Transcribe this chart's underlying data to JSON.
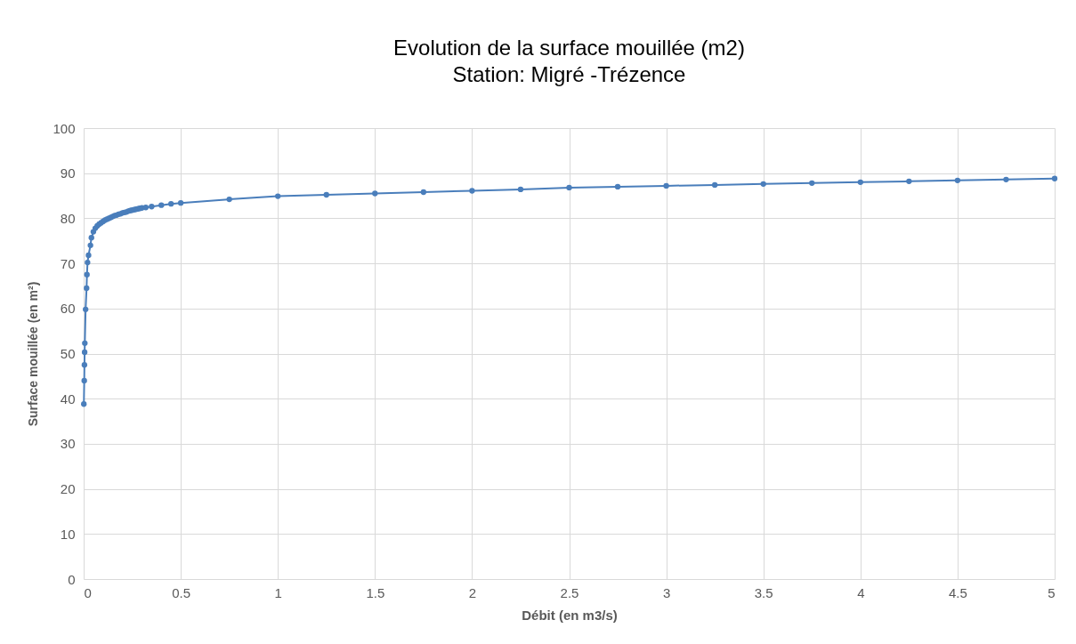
{
  "chart_data": {
    "type": "line",
    "title": "Evolution de la surface mouillée  (m2)",
    "subtitle": "Station: Migré -Trézence",
    "xlabel": "Débit (en m3/s)",
    "ylabel": "Surface mouillée (en m²)",
    "x": [
      0.001,
      0.003,
      0.004,
      0.005,
      0.006,
      0.01,
      0.015,
      0.017,
      0.02,
      0.025,
      0.035,
      0.04,
      0.05,
      0.06,
      0.07,
      0.08,
      0.09,
      0.1,
      0.11,
      0.12,
      0.13,
      0.14,
      0.15,
      0.16,
      0.17,
      0.18,
      0.19,
      0.2,
      0.21,
      0.22,
      0.23,
      0.24,
      0.25,
      0.26,
      0.27,
      0.28,
      0.29,
      0.3,
      0.32,
      0.35,
      0.4,
      0.45,
      0.5,
      0.75,
      1,
      1.25,
      1.5,
      1.75,
      2,
      2.25,
      2.5,
      2.75,
      3,
      3.25,
      3.5,
      3.75,
      4,
      4.25,
      4.5,
      4.75,
      5
    ],
    "series": [
      {
        "color": "#4a7ebb",
        "values": [
          38.8,
          44,
          47.5,
          50.3,
          52.3,
          59.8,
          64.5,
          67.5,
          70.2,
          71.8,
          74,
          75.7,
          77,
          77.8,
          78.3,
          78.7,
          79,
          79.3,
          79.6,
          79.8,
          80,
          80.2,
          80.4,
          80.6,
          80.7,
          80.9,
          81,
          81.2,
          81.3,
          81.4,
          81.6,
          81.7,
          81.8,
          81.9,
          82,
          82.1,
          82.2,
          82.3,
          82.4,
          82.6,
          82.9,
          83.2,
          83.4,
          84.2,
          84.9,
          85.2,
          85.5,
          85.8,
          86.1,
          86.4,
          86.8,
          87,
          87.2,
          87.4,
          87.6,
          87.8,
          88,
          88.2,
          88.4,
          88.6,
          88.8
        ]
      }
    ],
    "xlim": [
      0,
      5
    ],
    "xticks": [
      0,
      0.5,
      1,
      1.5,
      2,
      2.5,
      3,
      3.5,
      4,
      4.5,
      5
    ],
    "ylim": [
      0,
      100
    ],
    "yticks": [
      0,
      10,
      20,
      30,
      40,
      50,
      60,
      70,
      80,
      90,
      100
    ],
    "grid": true,
    "marker": "circle",
    "line_style": "solid"
  }
}
